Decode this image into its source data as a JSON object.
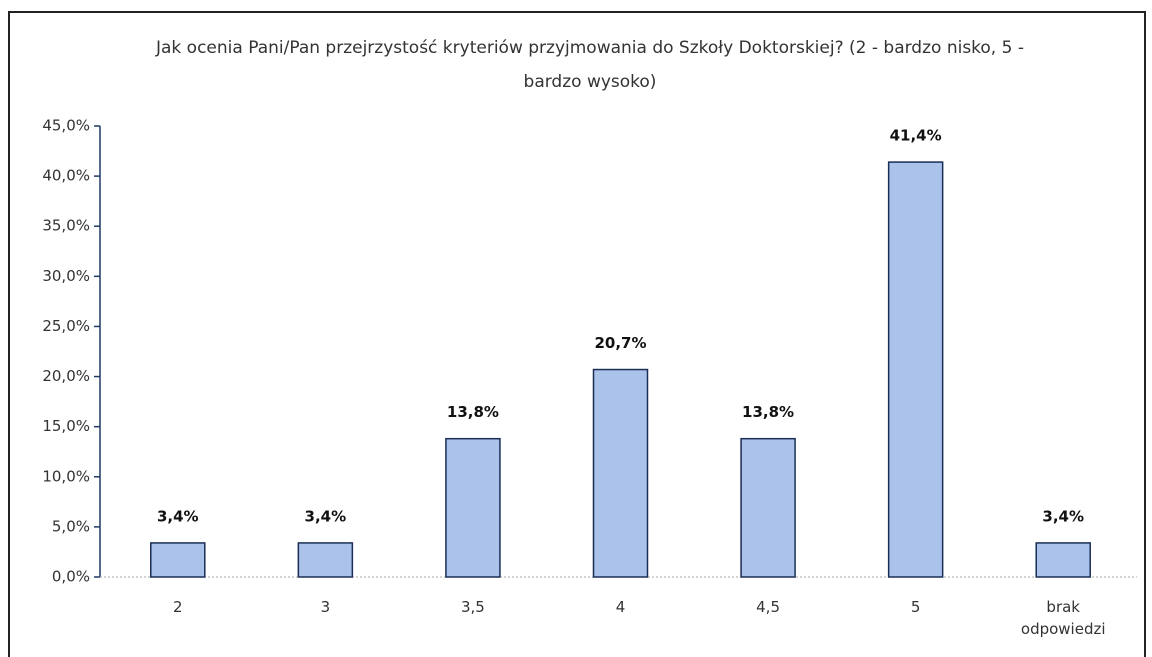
{
  "chart_data": {
    "type": "bar",
    "title": "Jak ocenia Pani/Pan przejrzystość kryteriów przyjmowania do Szkoły Doktorskiej? (2 - bardzo nisko, 5 - bardzo wysoko)",
    "categories": [
      "2",
      "3",
      "3,5",
      "4",
      "4,5",
      "5",
      "brak odpowiedzi"
    ],
    "values": [
      3.4,
      3.4,
      13.8,
      20.7,
      13.8,
      41.4,
      3.4
    ],
    "value_labels": [
      "3,4%",
      "3,4%",
      "13,8%",
      "20,7%",
      "13,8%",
      "41,4%",
      "3,4%"
    ],
    "color": "#abc2ea",
    "ylim": [
      0,
      45
    ],
    "yticks": [
      {
        "value": 0,
        "label": "0,0%"
      },
      {
        "value": 5,
        "label": "5,0%"
      },
      {
        "value": 10,
        "label": "10,0%"
      },
      {
        "value": 15,
        "label": "15,0%"
      },
      {
        "value": 20,
        "label": "20,0%"
      },
      {
        "value": 25,
        "label": "25,0%"
      },
      {
        "value": 30,
        "label": "30,0%"
      },
      {
        "value": 35,
        "label": "35,0%"
      },
      {
        "value": 40,
        "label": "40,0%"
      },
      {
        "value": 45,
        "label": "45,0%"
      }
    ],
    "grid": false
  }
}
